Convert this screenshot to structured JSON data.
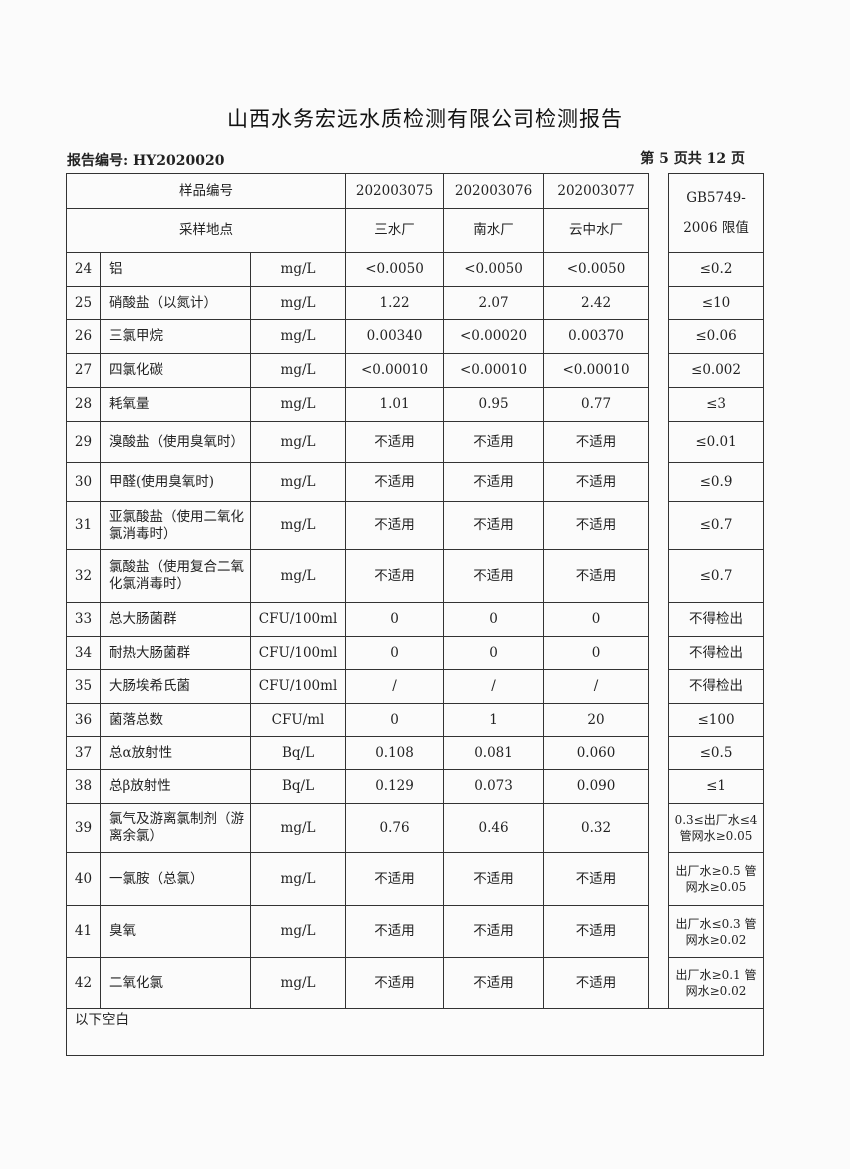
{
  "title": "山西水务宏远水质检测有限公司检测报告",
  "report_no": "报告编号: HY2020020",
  "page": "第 5 页共 12 页",
  "header": {
    "sample_no_label": "样品编号",
    "site_label": "采样地点",
    "samples": [
      "202003075",
      "202003076",
      "202003077"
    ],
    "sites": [
      "三水厂",
      "南水厂",
      "云中水厂"
    ],
    "limit_label": "GB5749-2006 限值"
  },
  "rows": [
    {
      "no": "24",
      "name": "铝",
      "unit": "mg/L",
      "v": [
        "<0.0050",
        "<0.0050",
        "<0.0050"
      ],
      "limit": "≤0.2"
    },
    {
      "no": "25",
      "name": "硝酸盐（以氮计）",
      "unit": "mg/L",
      "v": [
        "1.22",
        "2.07",
        "2.42"
      ],
      "limit": "≤10"
    },
    {
      "no": "26",
      "name": "三氯甲烷",
      "unit": "mg/L",
      "v": [
        "0.00340",
        "<0.00020",
        "0.00370"
      ],
      "limit": "≤0.06"
    },
    {
      "no": "27",
      "name": "四氯化碳",
      "unit": "mg/L",
      "v": [
        "<0.00010",
        "<0.00010",
        "<0.00010"
      ],
      "limit": "≤0.002"
    },
    {
      "no": "28",
      "name": "耗氧量",
      "unit": "mg/L",
      "v": [
        "1.01",
        "0.95",
        "0.77"
      ],
      "limit": "≤3"
    },
    {
      "no": "29",
      "name": "溴酸盐（使用臭氧时）",
      "unit": "mg/L",
      "v": [
        "不适用",
        "不适用",
        "不适用"
      ],
      "limit": "≤0.01"
    },
    {
      "no": "30",
      "name": "甲醛(使用臭氧时)",
      "unit": "mg/L",
      "v": [
        "不适用",
        "不适用",
        "不适用"
      ],
      "limit": "≤0.9"
    },
    {
      "no": "31",
      "name": "亚氯酸盐（使用二氧化氯消毒时）",
      "unit": "mg/L",
      "v": [
        "不适用",
        "不适用",
        "不适用"
      ],
      "limit": "≤0.7"
    },
    {
      "no": "32",
      "name": "氯酸盐（使用复合二氧化氯消毒时）",
      "unit": "mg/L",
      "v": [
        "不适用",
        "不适用",
        "不适用"
      ],
      "limit": "≤0.7"
    },
    {
      "no": "33",
      "name": "总大肠菌群",
      "unit": "CFU/100ml",
      "v": [
        "0",
        "0",
        "0"
      ],
      "limit": "不得检出"
    },
    {
      "no": "34",
      "name": "耐热大肠菌群",
      "unit": "CFU/100ml",
      "v": [
        "0",
        "0",
        "0"
      ],
      "limit": "不得检出"
    },
    {
      "no": "35",
      "name": "大肠埃希氏菌",
      "unit": "CFU/100ml",
      "v": [
        "/",
        "/",
        "/"
      ],
      "limit": "不得检出"
    },
    {
      "no": "36",
      "name": "菌落总数",
      "unit": "CFU/ml",
      "v": [
        "0",
        "1",
        "20"
      ],
      "limit": "≤100"
    },
    {
      "no": "37",
      "name": "总α放射性",
      "unit": "Bq/L",
      "v": [
        "0.108",
        "0.081",
        "0.060"
      ],
      "limit": "≤0.5"
    },
    {
      "no": "38",
      "name": "总β放射性",
      "unit": "Bq/L",
      "v": [
        "0.129",
        "0.073",
        "0.090"
      ],
      "limit": "≤1"
    },
    {
      "no": "39",
      "name": "氯气及游离氯制剂（游离余氯）",
      "unit": "mg/L",
      "v": [
        "0.76",
        "0.46",
        "0.32"
      ],
      "limit": "0.3≤出厂水≤4 管网水≥0.05"
    },
    {
      "no": "40",
      "name": "一氯胺（总氯）",
      "unit": "mg/L",
      "v": [
        "不适用",
        "不适用",
        "不适用"
      ],
      "limit": "出厂水≥0.5 管网水≥0.05"
    },
    {
      "no": "41",
      "name": "臭氧",
      "unit": "mg/L",
      "v": [
        "不适用",
        "不适用",
        "不适用"
      ],
      "limit": "出厂水≤0.3 管网水≥0.02"
    },
    {
      "no": "42",
      "name": "二氧化氯",
      "unit": "mg/L",
      "v": [
        "不适用",
        "不适用",
        "不适用"
      ],
      "limit": "出厂水≥0.1 管网水≥0.02"
    }
  ],
  "footer_note": "以下空白"
}
